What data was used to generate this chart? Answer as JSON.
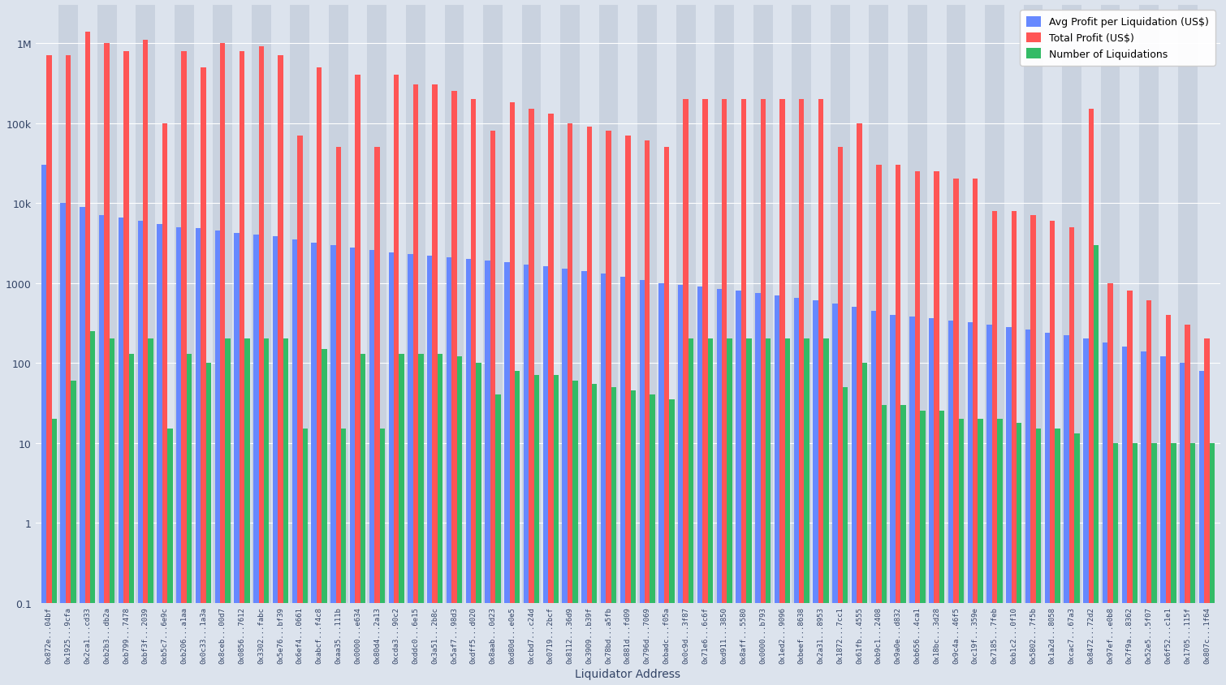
{
  "xlabel": "Liquidator Address",
  "legend_labels": [
    "Avg Profit per Liquidation (US$)",
    "Total Profit (US$)",
    "Number of Liquidations"
  ],
  "bar_colors": [
    "#6688ff",
    "#ff5555",
    "#33bb66"
  ],
  "bg_color": "#dce3ed",
  "alt_color": "#c9d2df",
  "labels": [
    "0x872e...04bf",
    "0x1925...9cfa",
    "0x2ca1...cd33",
    "0xb2b3...db2a",
    "0xb799...7478",
    "0xbf3f...2039",
    "0xb5c7...6e9c",
    "0xb206...a1aa",
    "0x0c33...1a3a",
    "0x8ceb...00d7",
    "0x0856...7612",
    "0x3302...fabc",
    "0x5e76...bf39",
    "0x6ef4...0661",
    "0xabcf...f4c8",
    "0xaa35...111b",
    "0x0000...e634",
    "0x80d4...2a13",
    "0xcda3...90c2",
    "0xddc0...6e15",
    "0x3a51...2b8c",
    "0x5af7...98d3",
    "0xdff5...d020",
    "0x8aab...0d23",
    "0xd80d...e0e5",
    "0xcbd7...c24d",
    "0x0719...2bcf",
    "0x8112...36d9",
    "0x3909...b39f",
    "0x78bd...a5fb",
    "0x881d...fd09",
    "0x796d...7069",
    "0xbadc...f05a",
    "0x0c9d...3f87",
    "0x71e6...6c6f",
    "0xd911...3850",
    "0x8aff...5580",
    "0x0000...b793",
    "0x1ed2...9096",
    "0xbeef...8638",
    "0x2a31...8953",
    "0x1872...7cc1",
    "0x61fb...4555",
    "0xb9c1...2408",
    "0x9a0e...d832",
    "0xb656...4ca1",
    "0x18bc...3d28",
    "0x9c4a...46f5",
    "0xc19f...359e",
    "0x7185...7feb",
    "0xb1c2...0f10",
    "0x5802...7f5b",
    "0x1a2d...8058",
    "0xcac7...67a3",
    "0x8472...72d2",
    "0x97ef...e0b8",
    "0x7f9a...8362",
    "0x52e5...5f07",
    "0x6f52...c1e1",
    "0x1705...115f",
    "0x807c...1f64"
  ],
  "avg_profit": [
    30000,
    10000,
    9000,
    7000,
    6500,
    6000,
    5500,
    5000,
    4800,
    4500,
    4200,
    4000,
    3800,
    3500,
    3200,
    3000,
    2800,
    2600,
    2400,
    2300,
    2200,
    2100,
    2000,
    1900,
    1800,
    1700,
    1600,
    1500,
    1400,
    1300,
    1200,
    1100,
    1000,
    950,
    900,
    850,
    800,
    750,
    700,
    650,
    600,
    550,
    500,
    450,
    400,
    380,
    360,
    340,
    320,
    300,
    280,
    260,
    240,
    220,
    200,
    180,
    160,
    140,
    120,
    100,
    80
  ],
  "total_profit": [
    700000,
    700000,
    1400000,
    1000000,
    800000,
    1100000,
    100000,
    800000,
    500000,
    1000000,
    800000,
    900000,
    700000,
    70000,
    500000,
    50000,
    400000,
    50000,
    400000,
    300000,
    300000,
    250000,
    200000,
    80000,
    180000,
    150000,
    130000,
    100000,
    90000,
    80000,
    70000,
    60000,
    50000,
    200000,
    200000,
    200000,
    200000,
    200000,
    200000,
    200000,
    200000,
    50000,
    100000,
    30000,
    30000,
    25000,
    25000,
    20000,
    20000,
    8000,
    8000,
    7000,
    6000,
    5000,
    150000,
    1000,
    800,
    600,
    400,
    300,
    200
  ],
  "num_liquidations": [
    20,
    60,
    250,
    200,
    130,
    200,
    15,
    130,
    100,
    200,
    200,
    200,
    200,
    15,
    150,
    15,
    130,
    15,
    130,
    130,
    130,
    120,
    100,
    40,
    80,
    70,
    70,
    60,
    55,
    50,
    45,
    40,
    35,
    200,
    200,
    200,
    200,
    200,
    200,
    200,
    200,
    50,
    100,
    30,
    30,
    25,
    25,
    20,
    20,
    20,
    18,
    15,
    15,
    13,
    3000,
    10,
    10,
    10,
    10,
    10,
    10
  ]
}
